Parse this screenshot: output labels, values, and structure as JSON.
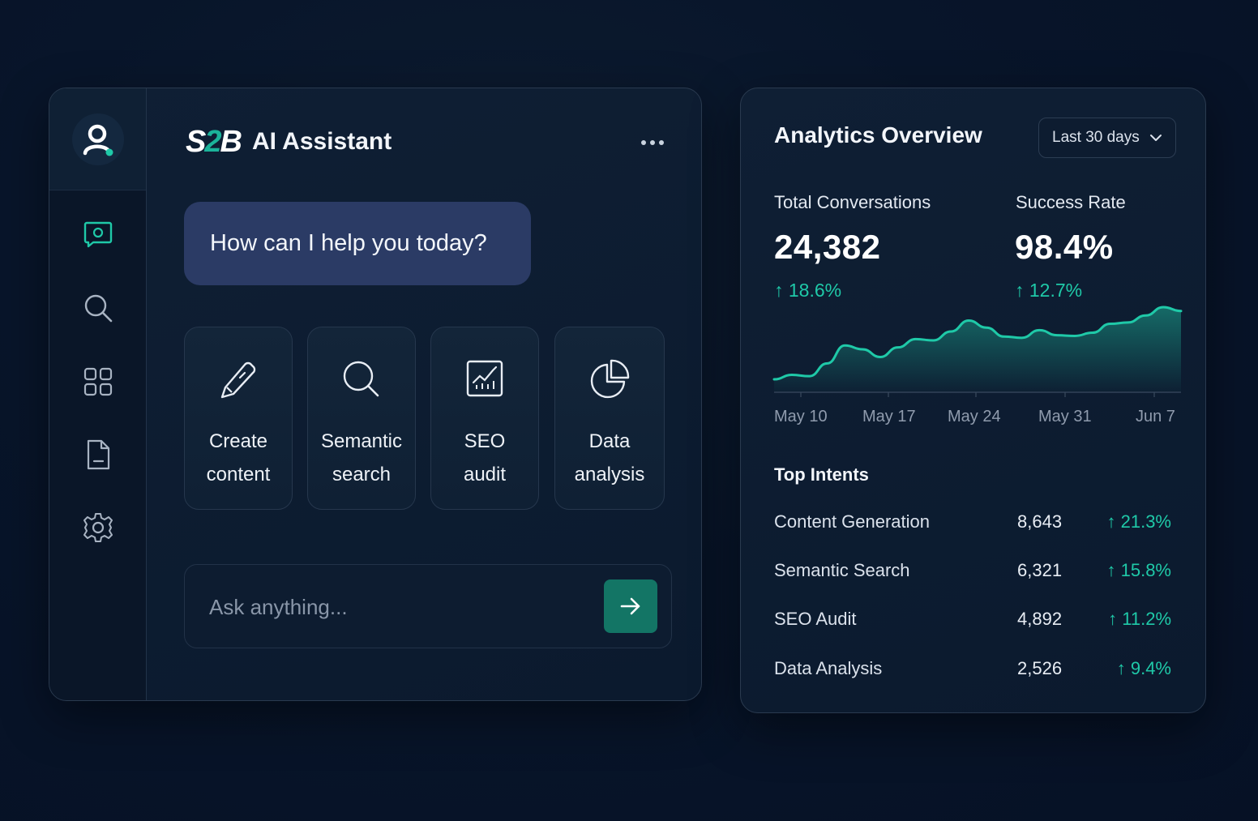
{
  "assistant": {
    "logo": {
      "left": "S",
      "mid": "2",
      "right": "B"
    },
    "title": "AI Assistant",
    "more_icon": "more-horizontal-icon",
    "greeting": "How can I help you today?",
    "sidebar": {
      "avatar_icon": "user-avatar-icon",
      "items": [
        {
          "name": "chat",
          "icon": "chat-icon",
          "active": true
        },
        {
          "name": "search",
          "icon": "search-icon",
          "active": false
        },
        {
          "name": "apps",
          "icon": "grid-icon",
          "active": false
        },
        {
          "name": "documents",
          "icon": "document-icon",
          "active": false
        },
        {
          "name": "settings",
          "icon": "gear-icon",
          "active": false
        }
      ]
    },
    "actions": [
      {
        "line1": "Create",
        "line2": "content",
        "icon": "pencil-icon"
      },
      {
        "line1": "Semantic",
        "line2": "search",
        "icon": "search-icon"
      },
      {
        "line1": "SEO",
        "line2": "audit",
        "icon": "trend-chart-icon"
      },
      {
        "line1": "Data",
        "line2": "analysis",
        "icon": "pie-chart-icon"
      }
    ],
    "input": {
      "placeholder": "Ask anything...",
      "value": ""
    },
    "send_icon": "arrow-right-icon"
  },
  "analytics": {
    "title": "Analytics Overview",
    "range": {
      "selected": "Last 30 days"
    },
    "stats": [
      {
        "label": "Total Conversations",
        "value": "24,382",
        "delta": "↑ 18.6%"
      },
      {
        "label": "Success Rate",
        "value": "98.4%",
        "delta": "↑ 12.7%"
      }
    ],
    "chart_data": {
      "type": "area",
      "x_ticks": [
        "May 10",
        "May 17",
        "May 24",
        "May 31",
        "Jun 7"
      ],
      "values": [
        0.05,
        0.12,
        0.1,
        0.3,
        0.58,
        0.52,
        0.4,
        0.55,
        0.68,
        0.66,
        0.8,
        0.97,
        0.86,
        0.72,
        0.7,
        0.82,
        0.74,
        0.73,
        0.78,
        0.92,
        0.94,
        1.05,
        1.18,
        1.12
      ],
      "grid": false,
      "color": "#1fc9a8"
    },
    "top_intents_title": "Top Intents",
    "intents": [
      {
        "name": "Content Generation",
        "count": "8,643",
        "delta": "↑ 21.3%"
      },
      {
        "name": "Semantic Search",
        "count": "6,321",
        "delta": "↑ 15.8%"
      },
      {
        "name": "SEO Audit",
        "count": "4,892",
        "delta": "↑ 11.2%"
      },
      {
        "name": "Data Analysis",
        "count": "2,526",
        "delta": "↑ 9.4%"
      }
    ]
  },
  "colors": {
    "background": "#08152a",
    "accent": "#1fc9a8",
    "send_button": "#137565",
    "bubble": "#2b3b65"
  }
}
